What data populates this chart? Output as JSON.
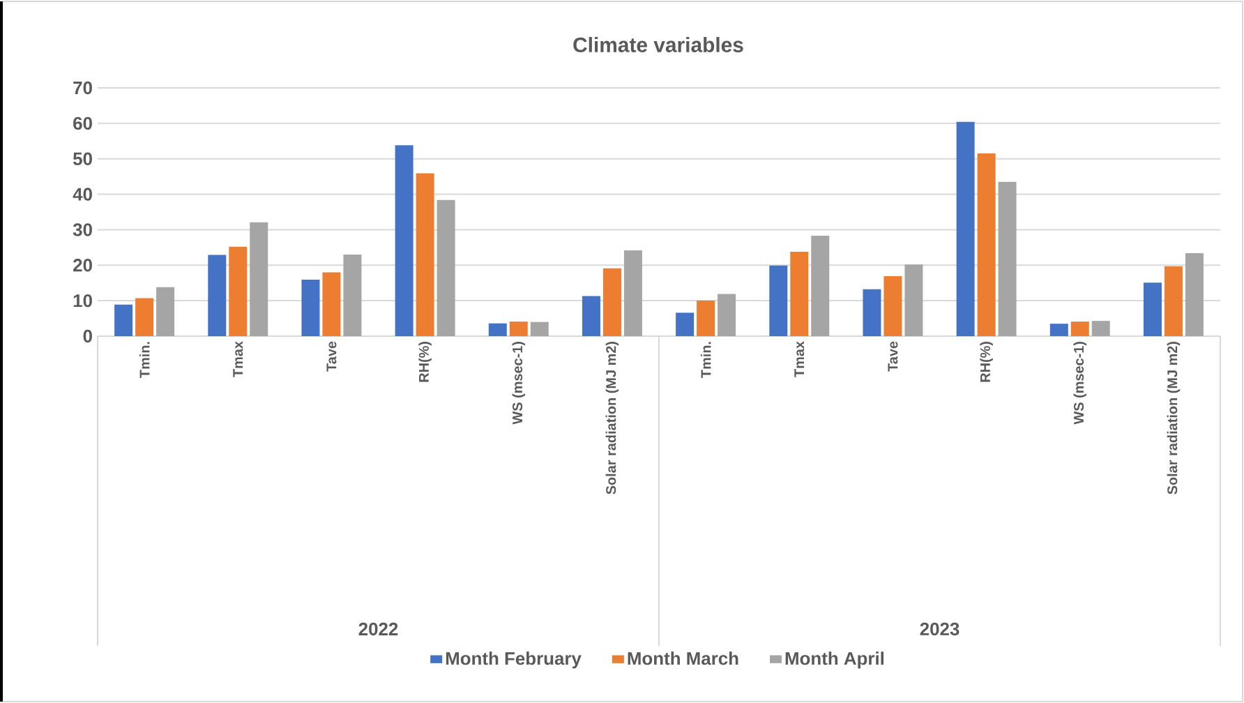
{
  "chart_data": {
    "type": "bar",
    "title": "Climate variables",
    "categories": [
      "Tmin.",
      "Tmax",
      "Tave",
      "RH(%)",
      "WS (msec-1)",
      "Solar radiation (MJ m2)",
      "Tmin.",
      "Tmax",
      "Tave",
      "RH(%)",
      "WS (msec-1)",
      "Solar radiation (MJ m2)"
    ],
    "series": [
      {
        "name": "Month February",
        "color": "#4472c4",
        "values": [
          8.9,
          22.9,
          15.9,
          53.8,
          3.6,
          11.3,
          6.6,
          19.9,
          13.2,
          60.4,
          3.5,
          15.1
        ]
      },
      {
        "name": "Month March",
        "color": "#ed7d31",
        "values": [
          10.7,
          25.2,
          18.0,
          45.9,
          4.1,
          19.1,
          10.0,
          23.8,
          16.9,
          51.5,
          4.1,
          19.7
        ]
      },
      {
        "name": "Month April",
        "color": "#a5a5a5",
        "values": [
          13.8,
          32.1,
          23.0,
          38.4,
          4.0,
          24.2,
          11.9,
          28.3,
          20.2,
          43.5,
          4.3,
          23.4
        ]
      }
    ],
    "annotations": [
      "2022",
      "2023"
    ],
    "ylim": [
      0,
      70
    ],
    "yticks": [
      0,
      10,
      20,
      30,
      40,
      50,
      60,
      70
    ],
    "grid": "y",
    "legend": "bottom"
  }
}
